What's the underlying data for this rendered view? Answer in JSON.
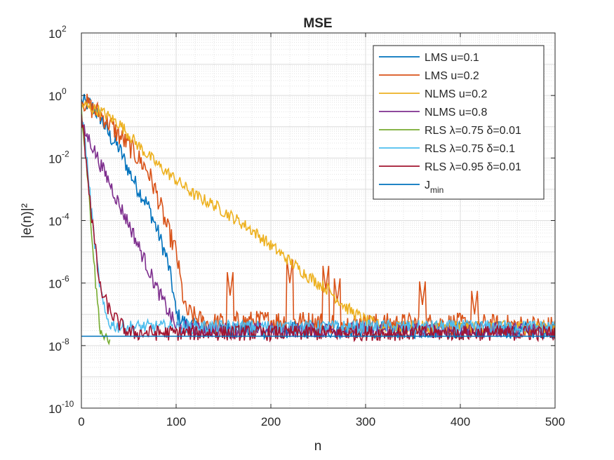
{
  "chart_data": {
    "type": "line",
    "title": "MSE",
    "xlabel": "n",
    "ylabel": "|e(n)|²",
    "xlim": [
      0,
      500
    ],
    "ylim_exp": [
      -10,
      2
    ],
    "yscale": "log",
    "grid": true,
    "minor_grid": true,
    "legend_position": "top-right",
    "x_ticks": [
      0,
      100,
      200,
      300,
      400,
      500
    ],
    "x_tick_labels": [
      "0",
      "100",
      "200",
      "300",
      "400",
      "500"
    ],
    "y_ticks_exp": [
      -10,
      -8,
      -6,
      -4,
      -2,
      0,
      2
    ],
    "y_tick_labels": [
      "10",
      "10",
      "10",
      "10",
      "10",
      "10",
      "10"
    ],
    "y_tick_exponents": [
      "-10",
      "-8",
      "-6",
      "-4",
      "-2",
      "0",
      "2"
    ],
    "series": [
      {
        "name": "LMS u=0.1",
        "color": "#0072BD",
        "log10_points": [
          [
            0,
            -0.2
          ],
          [
            10,
            -0.3
          ],
          [
            20,
            -0.7
          ],
          [
            30,
            -1.3
          ],
          [
            40,
            -1.7
          ],
          [
            50,
            -2.4
          ],
          [
            60,
            -3.0
          ],
          [
            70,
            -3.5
          ],
          [
            80,
            -4.3
          ],
          [
            90,
            -5.2
          ],
          [
            95,
            -5.9
          ],
          [
            100,
            -7.0
          ],
          [
            110,
            -7.3
          ],
          [
            130,
            -7.5
          ],
          [
            200,
            -7.5
          ],
          [
            300,
            -7.5
          ],
          [
            400,
            -7.5
          ],
          [
            500,
            -7.5
          ]
        ],
        "noise": 0.28
      },
      {
        "name": "LMS u=0.2",
        "color": "#D95319",
        "log10_points": [
          [
            0,
            -0.1
          ],
          [
            10,
            -0.4
          ],
          [
            20,
            -0.6
          ],
          [
            30,
            -0.9
          ],
          [
            40,
            -1.3
          ],
          [
            50,
            -1.6
          ],
          [
            60,
            -2.0
          ],
          [
            70,
            -2.4
          ],
          [
            80,
            -3.2
          ],
          [
            90,
            -4.2
          ],
          [
            100,
            -5.0
          ],
          [
            105,
            -6.0
          ],
          [
            110,
            -6.9
          ],
          [
            130,
            -7.3
          ],
          [
            200,
            -7.2
          ],
          [
            300,
            -7.3
          ],
          [
            400,
            -7.3
          ],
          [
            500,
            -7.4
          ]
        ],
        "noise": 0.35,
        "spikes": [
          [
            157,
            -6.4
          ],
          [
            220,
            -6.0
          ],
          [
            258,
            -6.2
          ],
          [
            270,
            -6.6
          ],
          [
            360,
            -6.7
          ],
          [
            415,
            -7.0
          ]
        ]
      },
      {
        "name": "NLMS u=0.2",
        "color": "#EDB120",
        "log10_points": [
          [
            0,
            -0.3
          ],
          [
            20,
            -0.5
          ],
          [
            40,
            -0.9
          ],
          [
            60,
            -1.6
          ],
          [
            80,
            -2.2
          ],
          [
            100,
            -2.7
          ],
          [
            120,
            -3.2
          ],
          [
            140,
            -3.5
          ],
          [
            160,
            -3.9
          ],
          [
            180,
            -4.3
          ],
          [
            200,
            -4.8
          ],
          [
            220,
            -5.3
          ],
          [
            240,
            -5.8
          ],
          [
            260,
            -6.2
          ],
          [
            280,
            -6.8
          ],
          [
            300,
            -7.2
          ],
          [
            320,
            -7.4
          ],
          [
            400,
            -7.4
          ],
          [
            500,
            -7.4
          ]
        ],
        "noise": 0.2
      },
      {
        "name": "NLMS u=0.8",
        "color": "#7E2F8E",
        "log10_points": [
          [
            0,
            -1.0
          ],
          [
            10,
            -1.5
          ],
          [
            20,
            -2.2
          ],
          [
            30,
            -2.8
          ],
          [
            40,
            -3.5
          ],
          [
            50,
            -4.1
          ],
          [
            60,
            -4.8
          ],
          [
            70,
            -5.5
          ],
          [
            80,
            -6.2
          ],
          [
            90,
            -6.8
          ],
          [
            100,
            -7.4
          ],
          [
            120,
            -7.5
          ],
          [
            500,
            -7.5
          ]
        ],
        "noise": 0.25
      },
      {
        "name": "RLS λ=0.75 δ=0.01",
        "color": "#77AC30",
        "log10_points": [
          [
            0,
            -0.5
          ],
          [
            5,
            -2.0
          ],
          [
            10,
            -4.0
          ],
          [
            15,
            -6.0
          ],
          [
            20,
            -7.5
          ],
          [
            25,
            -7.8
          ],
          [
            30,
            -7.9
          ]
        ],
        "noise": 0.2
      },
      {
        "name": "RLS λ=0.75 δ=0.1",
        "color": "#4DBEEE",
        "log10_points": [
          [
            0,
            -0.5
          ],
          [
            5,
            -1.8
          ],
          [
            10,
            -3.5
          ],
          [
            15,
            -5.0
          ],
          [
            20,
            -6.2
          ],
          [
            25,
            -7.0
          ],
          [
            30,
            -7.3
          ],
          [
            40,
            -7.4
          ],
          [
            500,
            -7.4
          ]
        ],
        "noise": 0.22
      },
      {
        "name": "RLS λ=0.95 δ=0.01",
        "color": "#A2142F",
        "log10_points": [
          [
            0,
            -0.6
          ],
          [
            5,
            -2.0
          ],
          [
            10,
            -3.6
          ],
          [
            15,
            -5.0
          ],
          [
            20,
            -6.2
          ],
          [
            30,
            -6.9
          ],
          [
            40,
            -7.3
          ],
          [
            50,
            -7.6
          ],
          [
            500,
            -7.6
          ]
        ],
        "noise": 0.25
      },
      {
        "name": "J",
        "name_sub": "min",
        "color": "#0072BD",
        "log10_points": [
          [
            0,
            -7.7
          ],
          [
            500,
            -7.7
          ]
        ],
        "noise": 0
      }
    ]
  }
}
